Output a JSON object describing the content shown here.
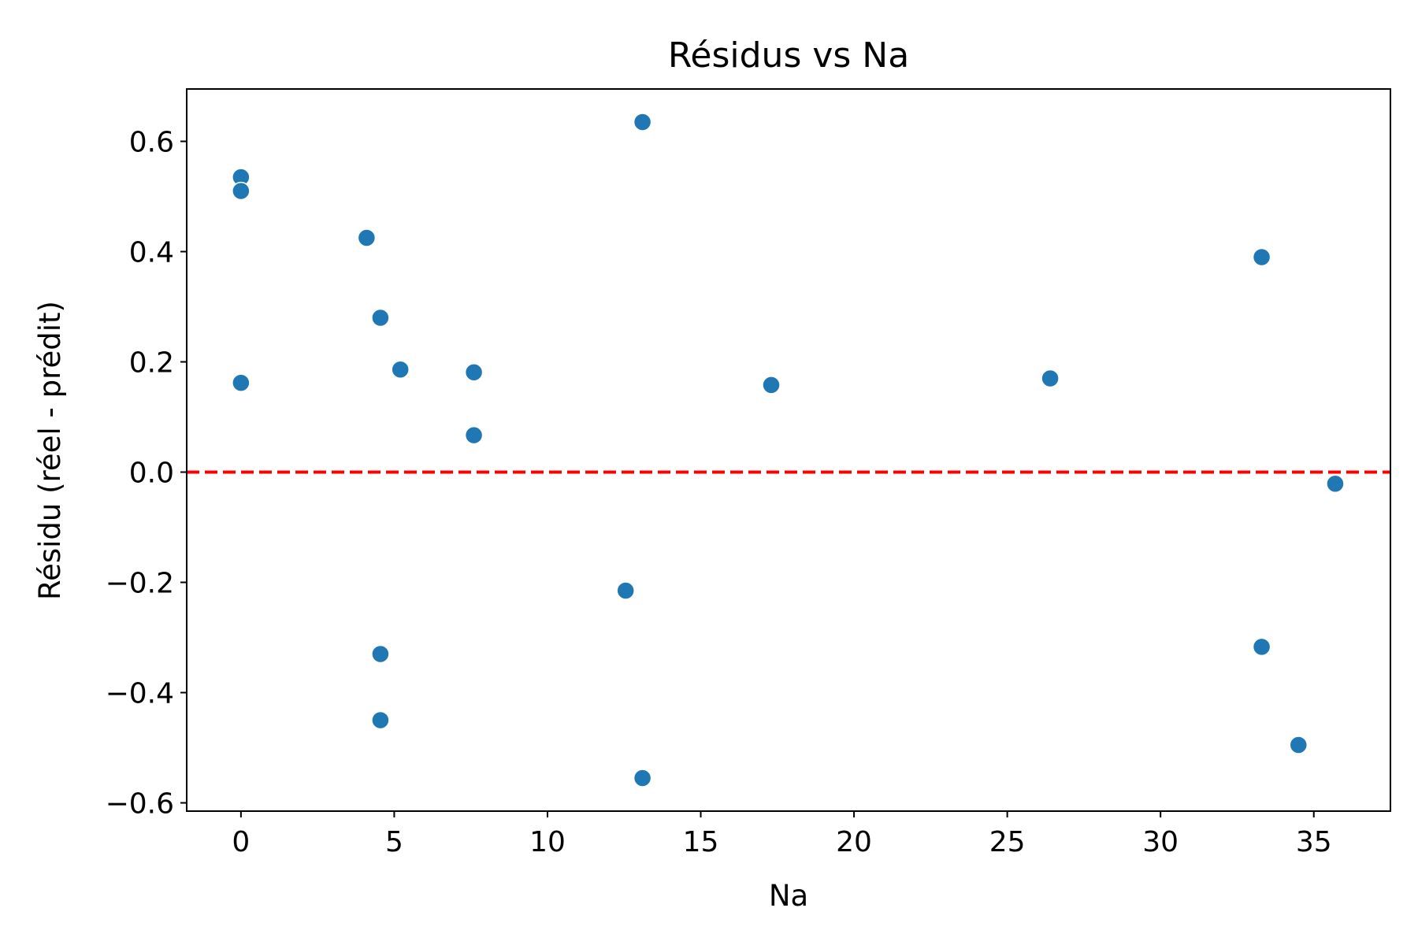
{
  "chart_data": {
    "type": "scatter",
    "title": "Résidus vs Na",
    "xlabel": "Na",
    "ylabel": "Résidu (réel - prédit)",
    "xlim": [
      -1.77,
      37.5
    ],
    "ylim": [
      -0.615,
      0.695
    ],
    "x_ticks": [
      0,
      5,
      10,
      15,
      20,
      25,
      30,
      35
    ],
    "x_tick_labels": [
      "0",
      "5",
      "10",
      "15",
      "20",
      "25",
      "30",
      "35"
    ],
    "y_ticks": [
      0.6,
      0.4,
      0.2,
      0.0,
      -0.2,
      -0.4,
      -0.6
    ],
    "y_tick_labels": [
      "0.6",
      "0.4",
      "0.2",
      "0.0",
      "−0.2",
      "−0.4",
      "−0.6"
    ],
    "grid": false,
    "reference_line": {
      "y": 0.0,
      "style": "dashed",
      "color": "#ff0000"
    },
    "marker_color": "#1f77b4",
    "series": [
      {
        "points": [
          {
            "x": 0.0,
            "y": 0.535
          },
          {
            "x": 0.0,
            "y": 0.51
          },
          {
            "x": 0.0,
            "y": 0.162
          },
          {
            "x": 4.1,
            "y": 0.425
          },
          {
            "x": 4.55,
            "y": 0.28
          },
          {
            "x": 5.2,
            "y": 0.186
          },
          {
            "x": 7.6,
            "y": 0.181
          },
          {
            "x": 7.6,
            "y": 0.067
          },
          {
            "x": 4.55,
            "y": -0.33
          },
          {
            "x": 4.55,
            "y": -0.45
          },
          {
            "x": 13.1,
            "y": 0.635
          },
          {
            "x": 12.55,
            "y": -0.215
          },
          {
            "x": 13.1,
            "y": -0.555
          },
          {
            "x": 17.3,
            "y": 0.158
          },
          {
            "x": 26.4,
            "y": 0.17
          },
          {
            "x": 33.3,
            "y": 0.39
          },
          {
            "x": 33.3,
            "y": -0.317
          },
          {
            "x": 34.5,
            "y": -0.495
          },
          {
            "x": 35.7,
            "y": -0.021
          }
        ]
      }
    ]
  }
}
